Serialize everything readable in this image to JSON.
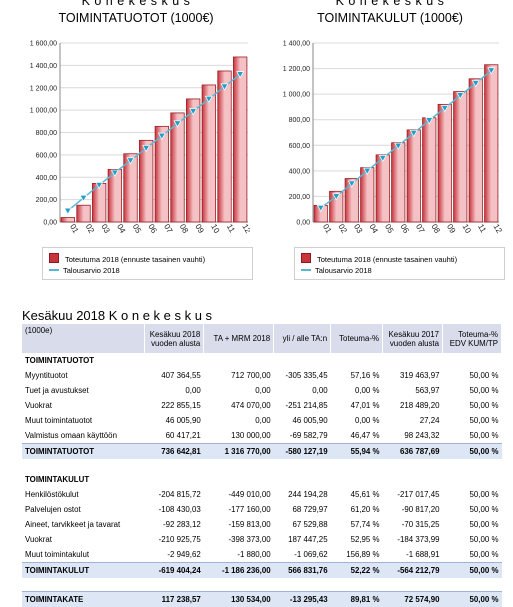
{
  "charts": [
    {
      "title_line1": "K o n e k e s k u s",
      "title_line2": "TOIMINTATUOTOT (1000€)",
      "legend_bar": "Toteutuma 2018 (ennuste tasainen vauhti)",
      "legend_line": "Talousarvio 2018"
    },
    {
      "title_line1": "K o n e k e s k u s",
      "title_line2": "TOIMINTAKULUT (1000€)",
      "legend_bar": "Toteutuma 2018 (ennuste tasainen vauhti)",
      "legend_line": "Talousarvio 2018"
    }
  ],
  "colors": {
    "bar": "#c8343c",
    "bar_light": "#f4c1c4",
    "line": "#5bb6d0",
    "marker": "#1f9fc9",
    "header_bg": "#d9dcea",
    "total_bg": "#dce6f5"
  },
  "chart_data": [
    {
      "type": "bar",
      "title": "TOIMINTATUOTOT (1000€)",
      "categories": [
        "01",
        "02",
        "03",
        "04",
        "05",
        "06",
        "07",
        "08",
        "09",
        "10",
        "11",
        "12"
      ],
      "ylim": [
        0,
        1600
      ],
      "yticks": [
        "0,00",
        "200,00",
        "400,00",
        "600,00",
        "800,00",
        "1 000,00",
        "1 200,00",
        "1 400,00",
        "1 600,00"
      ],
      "series": [
        {
          "name": "Toteutuma 2018 (ennuste tasainen vauhti)",
          "type": "bar",
          "values": [
            40,
            150,
            345,
            470,
            610,
            730,
            855,
            975,
            1100,
            1225,
            1350,
            1475
          ]
        },
        {
          "name": "Talousarvio 2018",
          "type": "line",
          "values": [
            100,
            215,
            330,
            440,
            550,
            660,
            770,
            880,
            990,
            1100,
            1210,
            1320
          ]
        }
      ]
    },
    {
      "type": "bar",
      "title": "TOIMINTAKULUT (1000€)",
      "categories": [
        "01",
        "02",
        "03",
        "04",
        "05",
        "06",
        "07",
        "08",
        "09",
        "10",
        "11",
        "12"
      ],
      "ylim": [
        0,
        1400
      ],
      "yticks": [
        "0,00",
        "200,00",
        "400,00",
        "600,00",
        "800,00",
        "1 000,00",
        "1 200,00",
        "1 400,00"
      ],
      "series": [
        {
          "name": "Toteutuma 2018 (ennuste tasainen vauhti)",
          "type": "bar",
          "values": [
            130,
            240,
            340,
            425,
            525,
            620,
            720,
            815,
            920,
            1020,
            1120,
            1230
          ]
        },
        {
          "name": "Talousarvio 2018",
          "type": "line",
          "values": [
            110,
            200,
            300,
            400,
            500,
            595,
            695,
            795,
            890,
            990,
            1085,
            1185
          ]
        }
      ]
    }
  ],
  "table": {
    "title": "Kesäkuu 2018 K o n e k e s k u s",
    "headers": [
      {
        "l1": "(1000e)",
        "l2": ""
      },
      {
        "l1": "Kesäkuu 2018",
        "l2": "vuoden alusta"
      },
      {
        "l1": "TA + MRM 2018",
        "l2": ""
      },
      {
        "l1": "yli / alle TA:n",
        "l2": ""
      },
      {
        "l1": "Toteuma-%",
        "l2": ""
      },
      {
        "l1": "Kesäkuu 2017",
        "l2": "vuoden alusta"
      },
      {
        "l1": "Toteuma-%",
        "l2": "EDV KUM/TP"
      }
    ],
    "rows": [
      {
        "kind": "sec",
        "cells": [
          "TOIMINTATUOTOT",
          "",
          "",
          "",
          "",
          "",
          ""
        ]
      },
      {
        "kind": "item",
        "cells": [
          "Myyntituotot",
          "407 364,55",
          "712 700,00",
          "-305 335,45",
          "57,16 %",
          "319 463,97",
          "50,00 %"
        ]
      },
      {
        "kind": "item",
        "cells": [
          "Tuet ja avustukset",
          "0,00",
          "0,00",
          "0,00",
          "0,00 %",
          "563,97",
          "50,00 %"
        ]
      },
      {
        "kind": "item",
        "cells": [
          "Vuokrat",
          "222 855,15",
          "474 070,00",
          "-251 214,85",
          "47,01 %",
          "218 489,20",
          "50,00 %"
        ]
      },
      {
        "kind": "item",
        "cells": [
          "Muut toimintatuotot",
          "46 005,90",
          "0,00",
          "46 005,90",
          "0,00 %",
          "27,24",
          "50,00 %"
        ]
      },
      {
        "kind": "item",
        "cells": [
          "Valmistus omaan käyttöön",
          "60 417,21",
          "130 000,00",
          "-69 582,79",
          "46,47 %",
          "98 243,32",
          "50,00 %"
        ]
      },
      {
        "kind": "tot",
        "cells": [
          "TOIMINTATUOTOT",
          "736 642,81",
          "1 316 770,00",
          "-580 127,19",
          "55,94 %",
          "636 787,69",
          "50,00 %"
        ]
      },
      {
        "kind": "blank",
        "cells": [
          "",
          "",
          "",
          "",
          "",
          "",
          ""
        ]
      },
      {
        "kind": "sec",
        "cells": [
          "TOIMINTAKULUT",
          "",
          "",
          "",
          "",
          "",
          ""
        ]
      },
      {
        "kind": "item",
        "cells": [
          "Henkilöstökulut",
          "-204 815,72",
          "-449 010,00",
          "244 194,28",
          "45,61 %",
          "-217 017,45",
          "50,00 %"
        ]
      },
      {
        "kind": "item",
        "cells": [
          "Palvelujen ostot",
          "-108 430,03",
          "-177 160,00",
          "68 729,97",
          "61,20 %",
          "-90 817,20",
          "50,00 %"
        ]
      },
      {
        "kind": "item",
        "cells": [
          "Aineet, tarvikkeet ja tavarat",
          "-92 283,12",
          "-159 813,00",
          "67 529,88",
          "57,74 %",
          "-70 315,25",
          "50,00 %"
        ]
      },
      {
        "kind": "item",
        "cells": [
          "Vuokrat",
          "-210 925,75",
          "-398 373,00",
          "187 447,25",
          "52,95 %",
          "-184 373,99",
          "50,00 %"
        ]
      },
      {
        "kind": "item",
        "cells": [
          "Muut toimintakulut",
          "-2 949,62",
          "-1 880,00",
          "-1 069,62",
          "156,89 %",
          "-1 688,91",
          "50,00 %"
        ]
      },
      {
        "kind": "tot",
        "cells": [
          "TOIMINTAKULUT",
          "-619 404,24",
          "-1 186 236,00",
          "566 831,76",
          "52,22 %",
          "-564 212,79",
          "50,00 %"
        ]
      },
      {
        "kind": "blank",
        "cells": [
          "",
          "",
          "",
          "",
          "",
          "",
          ""
        ]
      },
      {
        "kind": "tot",
        "cells": [
          "TOIMINTAKATE",
          "117 238,57",
          "130 534,00",
          "-13 295,43",
          "89,81 %",
          "72 574,90",
          "50,00 %"
        ]
      }
    ]
  }
}
